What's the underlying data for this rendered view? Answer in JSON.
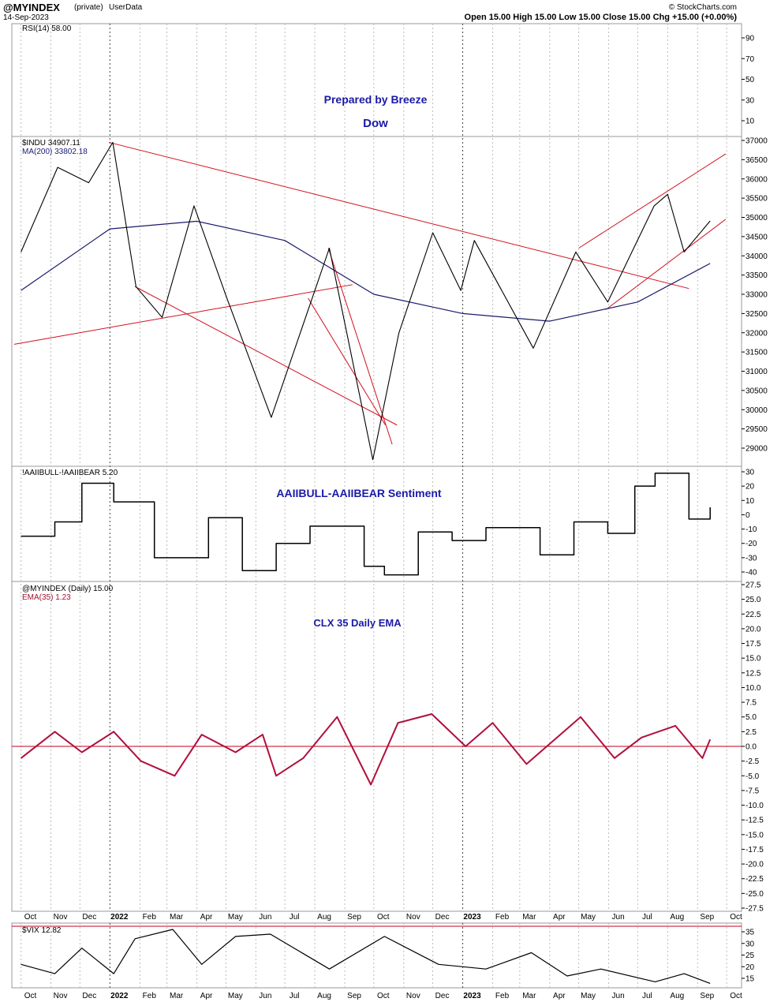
{
  "header": {
    "symbol": "@MYINDEX",
    "privacy": "(private)",
    "data_source": "UserData",
    "date": "14-Sep-2023",
    "ohlc": "Open 15.00  High 15.00  Low 15.00  Close 15.00  Chg +15.00 (+0.00%)",
    "watermark": "© StockCharts.com"
  },
  "panels": {
    "rsi": {
      "label": "RSI(14) 58.00",
      "ticks": [
        "90",
        "70",
        "50",
        "30",
        "10"
      ],
      "annotation1": "Prepared by Breeze",
      "annotation2": "Dow"
    },
    "dow": {
      "label": "$INDU 34907.11",
      "ma_label": "MA(200) 33802.18",
      "ticks": [
        "37000",
        "36500",
        "36000",
        "35500",
        "35000",
        "34500",
        "34000",
        "33500",
        "33000",
        "32500",
        "32000",
        "31500",
        "31000",
        "30500",
        "30000",
        "29500",
        "29000"
      ]
    },
    "aaii": {
      "label": "!AAIIBULL-!AAIIBEAR 5.20",
      "annotation": "AAIIBULL-AAIIBEAR Sentiment",
      "ticks": [
        "30",
        "20",
        "10",
        "0",
        "-10",
        "-20",
        "-30",
        "-40"
      ]
    },
    "clx": {
      "label": "@MYINDEX (Daily) 15.00",
      "ema_label": "EMA(35) 1.23",
      "annotation": "CLX 35 Daily EMA",
      "ticks": [
        "27.5",
        "25.0",
        "22.5",
        "20.0",
        "17.5",
        "15.0",
        "12.5",
        "10.0",
        "7.5",
        "5.0",
        "2.5",
        "0.0",
        "-2.5",
        "-5.0",
        "-7.5",
        "-10.0",
        "-12.5",
        "-15.0",
        "-17.5",
        "-20.0",
        "-22.5",
        "-25.0",
        "-27.5"
      ]
    },
    "vix": {
      "label": "$VIX 12.82",
      "ticks": [
        "35",
        "30",
        "25",
        "20",
        "15"
      ]
    }
  },
  "x_axis": {
    "months": [
      "Oct",
      "Nov",
      "Dec",
      "2022",
      "Feb",
      "Mar",
      "Apr",
      "May",
      "Jun",
      "Jul",
      "Aug",
      "Sep",
      "Oct",
      "Nov",
      "Dec",
      "2023",
      "Feb",
      "Mar",
      "Apr",
      "May",
      "Jun",
      "Jul",
      "Aug",
      "Sep",
      "Oct"
    ]
  },
  "chart_data": [
    {
      "type": "line",
      "title": "RSI(14) 58.00",
      "ylim": [
        0,
        100
      ],
      "series": []
    },
    {
      "type": "line",
      "title": "$INDU 34907.11",
      "ylim": [
        28400,
        37100
      ],
      "series": [
        {
          "name": "$INDU",
          "x": [
            "2021-10-01",
            "2021-11-08",
            "2021-12-10",
            "2022-01-04",
            "2022-01-28",
            "2022-02-24",
            "2022-03-29",
            "2022-05-02",
            "2022-06-17",
            "2022-08-16",
            "2022-09-30",
            "2022-10-27",
            "2022-12-01",
            "2022-12-30",
            "2023-01-13",
            "2023-03-15",
            "2023-04-28",
            "2023-05-31",
            "2023-07-18",
            "2023-08-01",
            "2023-08-18",
            "2023-09-14"
          ],
          "values": [
            34100,
            36300,
            35900,
            36950,
            33200,
            32400,
            35300,
            32900,
            29800,
            34200,
            28700,
            32000,
            34600,
            33100,
            34400,
            31600,
            34100,
            32800,
            35300,
            35600,
            34100,
            34907
          ]
        },
        {
          "name": "MA(200)",
          "x": [
            "2021-10-01",
            "2022-01-01",
            "2022-04-01",
            "2022-07-01",
            "2022-10-01",
            "2023-01-01",
            "2023-04-01",
            "2023-07-01",
            "2023-09-14"
          ],
          "values": [
            33100,
            34700,
            34900,
            34400,
            33000,
            32500,
            32300,
            32800,
            33802
          ]
        }
      ]
    },
    {
      "type": "line",
      "title": "!AAIIBULL-!AAIIBEAR 5.20",
      "ylim": [
        -45,
        32
      ],
      "series": [
        {
          "name": "!AAIIBULL-!AAIIBEAR",
          "x": [
            "2021-10-01",
            "2021-11-05",
            "2021-12-03",
            "2022-01-05",
            "2022-02-16",
            "2022-04-13",
            "2022-05-18",
            "2022-06-22",
            "2022-07-27",
            "2022-09-21",
            "2022-10-12",
            "2022-11-16",
            "2022-12-21",
            "2023-01-25",
            "2023-03-22",
            "2023-04-26",
            "2023-05-31",
            "2023-06-28",
            "2023-07-19",
            "2023-08-23",
            "2023-09-14"
          ],
          "values": [
            -15,
            -5,
            22,
            9,
            -30,
            -2,
            -39,
            -20,
            -8,
            -36,
            -42,
            -12,
            -18,
            -9,
            -28,
            -5,
            -13,
            20,
            29,
            -3,
            5.2
          ]
        }
      ]
    },
    {
      "type": "line",
      "title": "@MYINDEX (Daily) 15.00",
      "ylim": [
        -27.5,
        27.5
      ],
      "series": [
        {
          "name": "EMA(35)",
          "x": [
            "2021-10-01",
            "2021-11-05",
            "2021-12-03",
            "2022-01-05",
            "2022-02-02",
            "2022-03-09",
            "2022-04-06",
            "2022-05-11",
            "2022-06-08",
            "2022-06-22",
            "2022-07-20",
            "2022-08-24",
            "2022-09-28",
            "2022-10-26",
            "2022-11-30",
            "2023-01-04",
            "2023-02-01",
            "2023-03-08",
            "2023-05-03",
            "2023-06-07",
            "2023-07-05",
            "2023-08-09",
            "2023-09-06",
            "2023-09-14"
          ],
          "values": [
            -2,
            2.5,
            -1,
            2.5,
            -2.5,
            -5,
            2,
            -1,
            2,
            -5,
            -2,
            5,
            -6.5,
            4,
            5.5,
            0,
            4,
            -3,
            5,
            -2,
            1.5,
            3.5,
            -2,
            1.2
          ]
        }
      ]
    },
    {
      "type": "line",
      "title": "$VIX 12.82",
      "ylim": [
        12,
        37
      ],
      "series": [
        {
          "name": "$VIX",
          "x": [
            "2021-10-01",
            "2021-11-05",
            "2021-12-03",
            "2022-01-05",
            "2022-01-27",
            "2022-03-07",
            "2022-04-06",
            "2022-05-11",
            "2022-06-16",
            "2022-08-16",
            "2022-10-12",
            "2022-12-07",
            "2023-01-25",
            "2023-03-13",
            "2023-04-19",
            "2023-05-24",
            "2023-07-19",
            "2023-08-18",
            "2023-09-14"
          ],
          "values": [
            21,
            17,
            28,
            17,
            32,
            36,
            21,
            33,
            34,
            19,
            33,
            21,
            19,
            26,
            16,
            19,
            13.5,
            17,
            12.82
          ]
        }
      ]
    }
  ]
}
